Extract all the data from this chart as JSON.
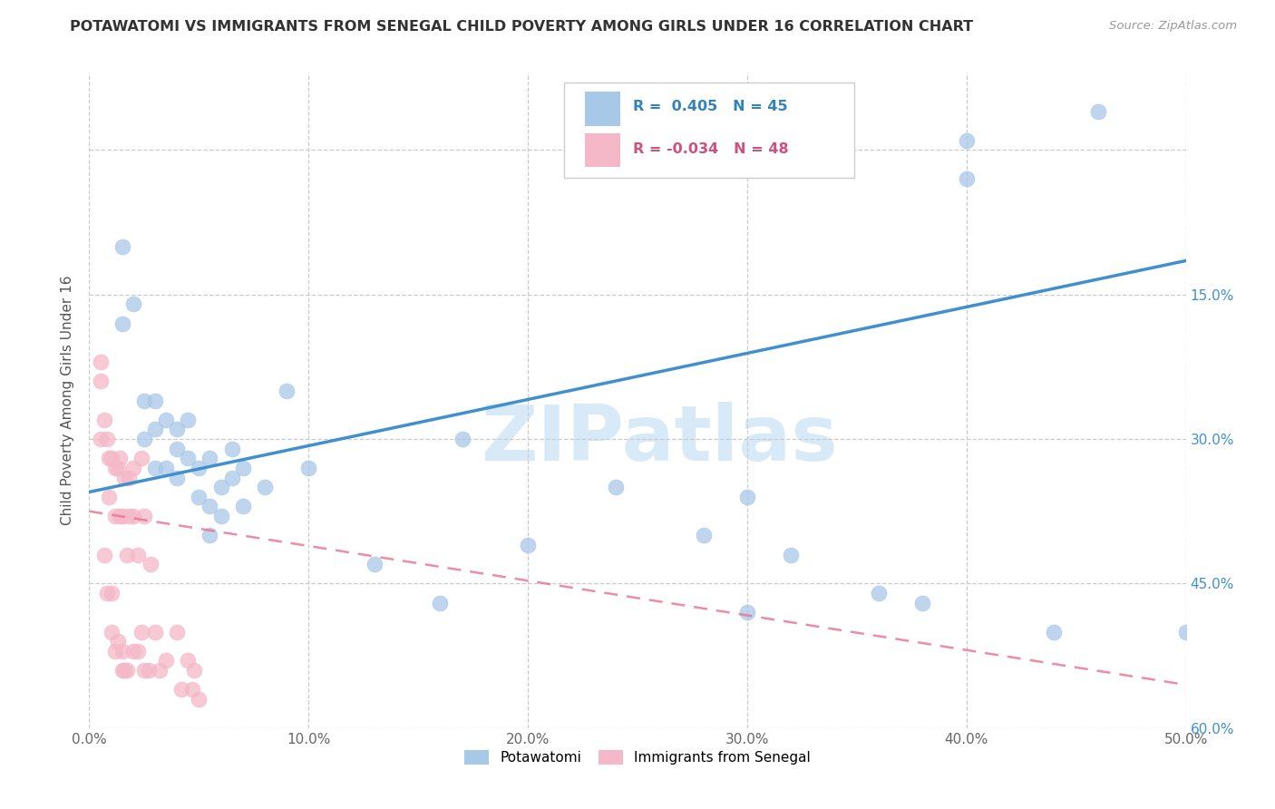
{
  "title": "POTAWATOMI VS IMMIGRANTS FROM SENEGAL CHILD POVERTY AMONG GIRLS UNDER 16 CORRELATION CHART",
  "source": "Source: ZipAtlas.com",
  "ylabel": "Child Poverty Among Girls Under 16",
  "xlabel_ticks": [
    "0.0%",
    "10.0%",
    "20.0%",
    "30.0%",
    "40.0%",
    "50.0%"
  ],
  "ylabel_ticks_right": [
    "60.0%",
    "45.0%",
    "30.0%",
    "15.0%",
    ""
  ],
  "xlim": [
    0.0,
    0.5
  ],
  "ylim": [
    0.0,
    0.68
  ],
  "blue_color": "#a8c8e8",
  "pink_color": "#f4b8c8",
  "blue_line_color": "#4090d0",
  "pink_line_color": "#e87090",
  "watermark_text": "ZIPatlas",
  "watermark_color": "#d8eaf8",
  "blue_line_y0": 0.245,
  "blue_line_y1": 0.485,
  "pink_line_y0": 0.225,
  "pink_line_y1": 0.045,
  "potawatomi_x": [
    0.015,
    0.015,
    0.02,
    0.025,
    0.025,
    0.03,
    0.03,
    0.03,
    0.035,
    0.035,
    0.04,
    0.04,
    0.04,
    0.045,
    0.045,
    0.05,
    0.05,
    0.055,
    0.055,
    0.055,
    0.06,
    0.06,
    0.065,
    0.065,
    0.07,
    0.07,
    0.08,
    0.09,
    0.1,
    0.13,
    0.16,
    0.17,
    0.2,
    0.24,
    0.28,
    0.3,
    0.3,
    0.32,
    0.36,
    0.38,
    0.4,
    0.4,
    0.44,
    0.46,
    0.5
  ],
  "potawatomi_y": [
    0.5,
    0.42,
    0.44,
    0.3,
    0.34,
    0.27,
    0.31,
    0.34,
    0.27,
    0.32,
    0.26,
    0.29,
    0.31,
    0.28,
    0.32,
    0.24,
    0.27,
    0.2,
    0.23,
    0.28,
    0.22,
    0.25,
    0.26,
    0.29,
    0.23,
    0.27,
    0.25,
    0.35,
    0.27,
    0.17,
    0.13,
    0.3,
    0.19,
    0.25,
    0.2,
    0.24,
    0.12,
    0.18,
    0.14,
    0.13,
    0.61,
    0.57,
    0.1,
    0.64,
    0.1
  ],
  "senegal_x": [
    0.005,
    0.005,
    0.005,
    0.007,
    0.007,
    0.008,
    0.008,
    0.009,
    0.009,
    0.01,
    0.01,
    0.01,
    0.012,
    0.012,
    0.012,
    0.013,
    0.013,
    0.014,
    0.014,
    0.015,
    0.015,
    0.015,
    0.016,
    0.016,
    0.017,
    0.017,
    0.018,
    0.018,
    0.02,
    0.02,
    0.02,
    0.022,
    0.022,
    0.024,
    0.024,
    0.025,
    0.025,
    0.027,
    0.028,
    0.03,
    0.032,
    0.035,
    0.04,
    0.042,
    0.045,
    0.047,
    0.048,
    0.05
  ],
  "senegal_y": [
    0.36,
    0.38,
    0.3,
    0.18,
    0.32,
    0.14,
    0.3,
    0.24,
    0.28,
    0.1,
    0.14,
    0.28,
    0.08,
    0.22,
    0.27,
    0.09,
    0.27,
    0.22,
    0.28,
    0.06,
    0.08,
    0.22,
    0.06,
    0.26,
    0.06,
    0.18,
    0.22,
    0.26,
    0.08,
    0.22,
    0.27,
    0.08,
    0.18,
    0.1,
    0.28,
    0.06,
    0.22,
    0.06,
    0.17,
    0.1,
    0.06,
    0.07,
    0.1,
    0.04,
    0.07,
    0.04,
    0.06,
    0.03
  ]
}
